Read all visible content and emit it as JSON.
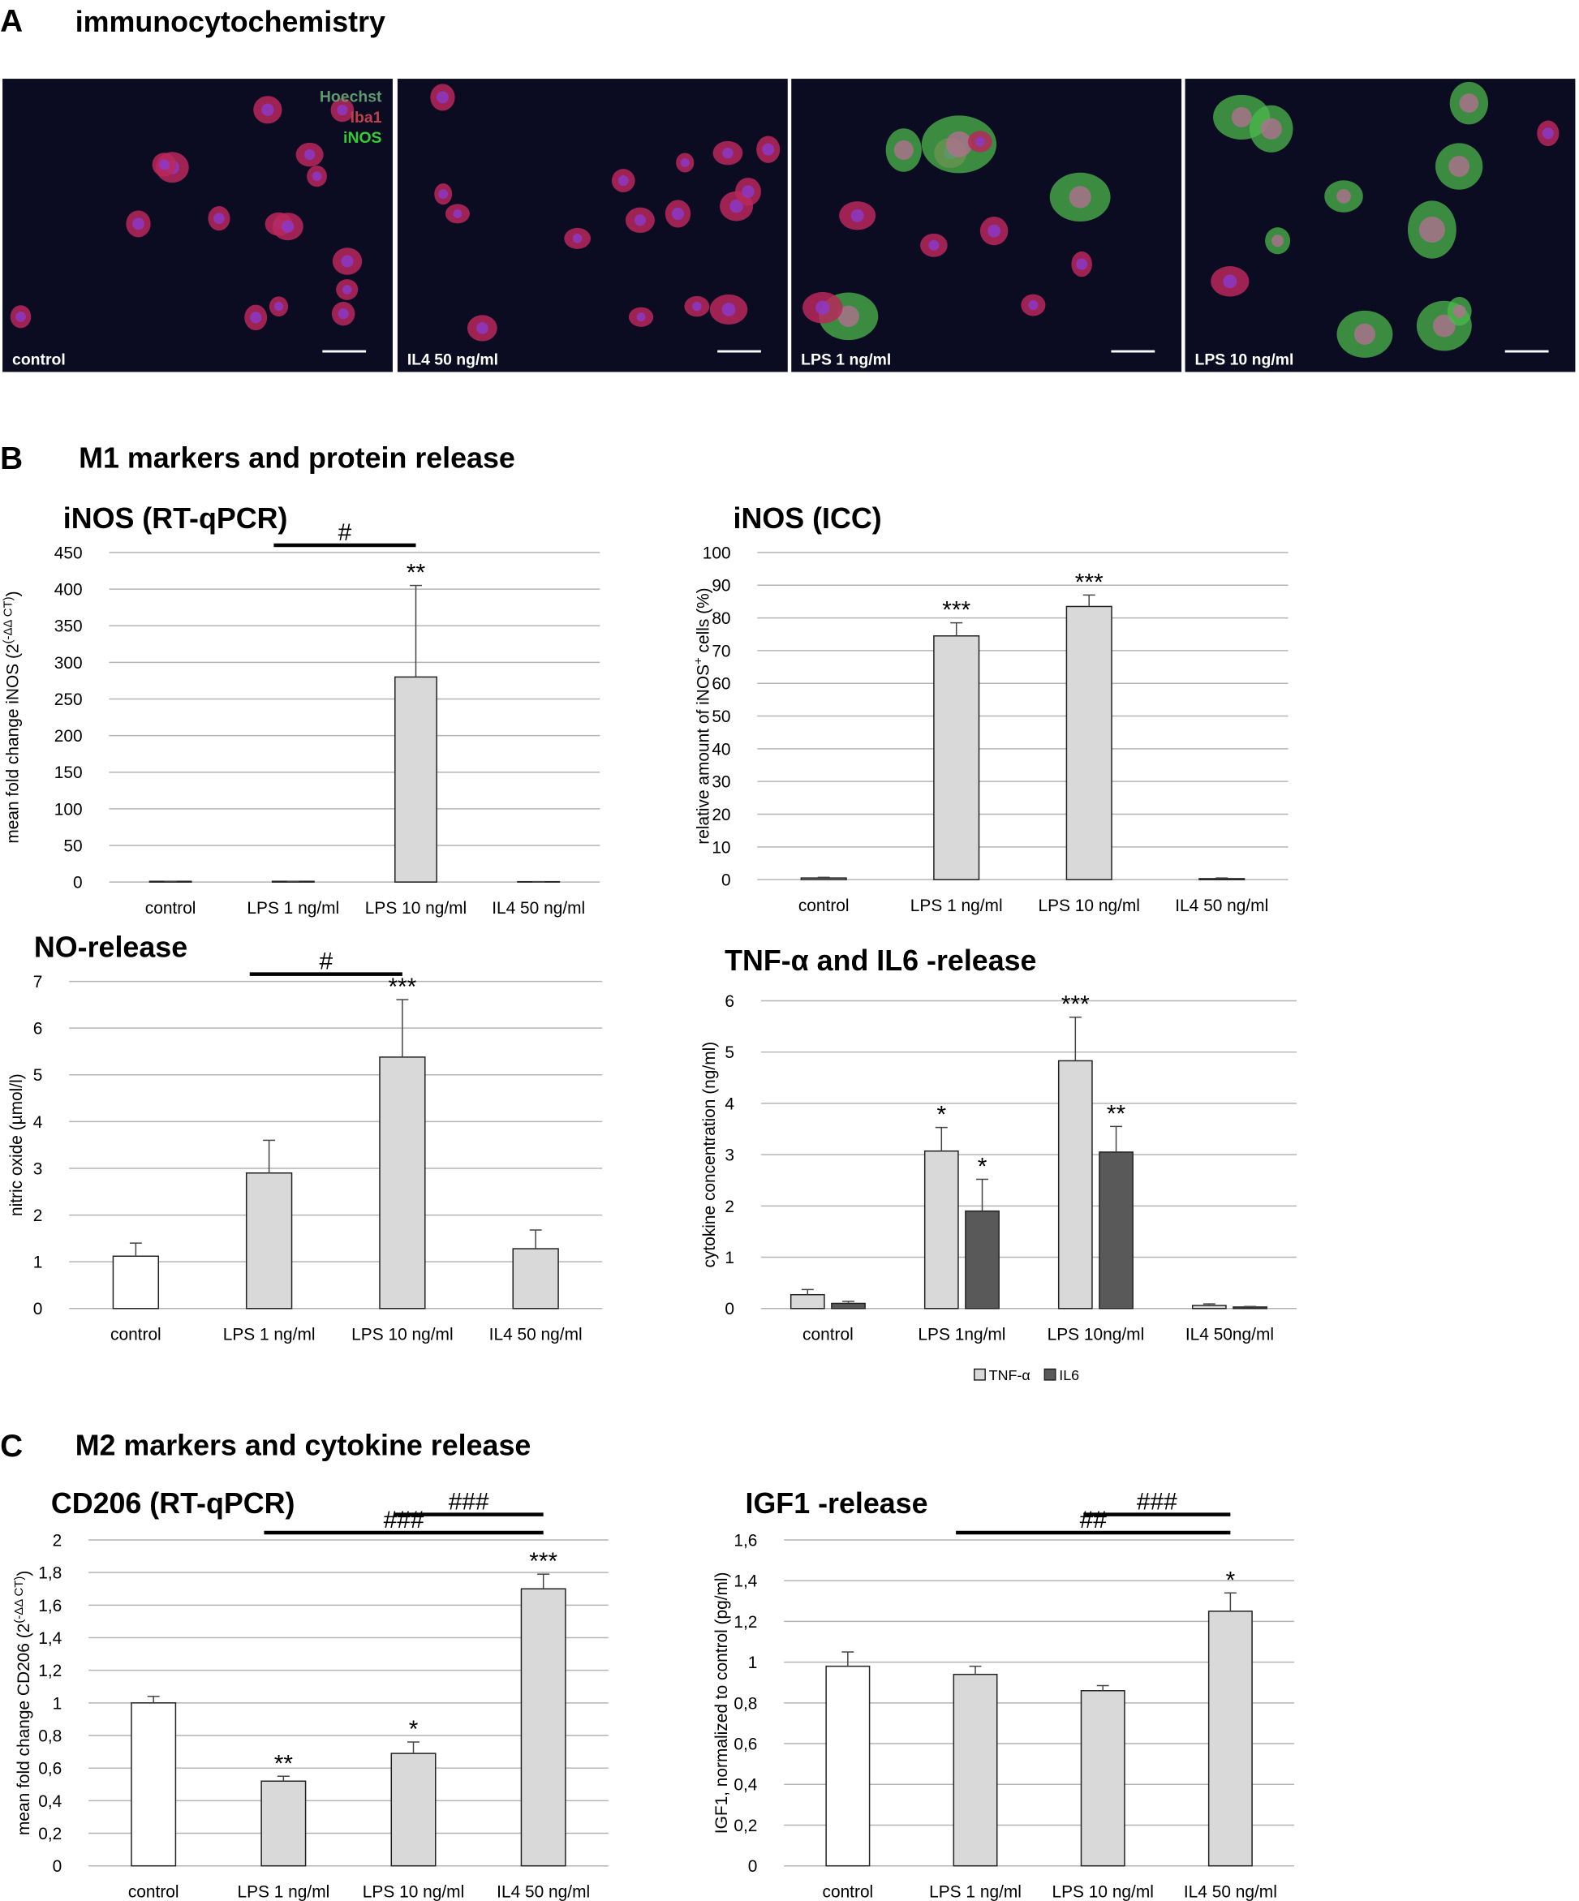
{
  "panel_labels": {
    "a": "A",
    "b": "B",
    "c": "C"
  },
  "section_titles": {
    "a": "immunocytochemistry",
    "b": "M1 markers and protein release",
    "c": "M2 markers and cytokine release"
  },
  "micrographs": {
    "captions": [
      "control",
      "IL4 50 ng/ml",
      "LPS 1 ng/ml",
      "LPS 10 ng/ml"
    ],
    "stain_legend": [
      "Hoechst",
      "Iba1",
      "iNOS"
    ]
  },
  "chart_data": [
    {
      "type": "bar",
      "title": "iNOS (RT-qPCR)",
      "ylabel": {
        "text": "mean fold change iNOS (2",
        "superscript": "(-ΔΔ CT)",
        "end": ")"
      },
      "categories": [
        "control",
        "LPS 1 ng/ml",
        "LPS 10 ng/ml",
        "IL4 50 ng/ml"
      ],
      "values": [
        1,
        1,
        280,
        0.5
      ],
      "errors": [
        0,
        0,
        125,
        0
      ],
      "colors": [
        "#d9d9d9",
        "#d9d9d9",
        "#d9d9d9",
        "#d9d9d9"
      ],
      "ylim": [
        0,
        450
      ],
      "yticks": [
        0,
        50,
        100,
        150,
        200,
        250,
        300,
        350,
        400,
        450
      ],
      "grid": true,
      "significance": [
        {
          "label": "**",
          "category": "LPS 10 ng/ml"
        }
      ],
      "brackets": [
        {
          "label": "#",
          "from": "LPS 1 ng/ml",
          "to": "LPS 10 ng/ml"
        }
      ]
    },
    {
      "type": "bar",
      "title": "iNOS (ICC)",
      "ylabel": {
        "text": "relative amount of iNOS",
        "superscript": "+",
        "end": " cells (%)"
      },
      "categories": [
        "control",
        "LPS 1 ng/ml",
        "LPS 10 ng/ml",
        "IL4 50 ng/ml"
      ],
      "values": [
        0.5,
        74.5,
        83.5,
        0.3
      ],
      "errors": [
        0.2,
        4,
        3.5,
        0.2
      ],
      "colors": [
        "#d9d9d9",
        "#d9d9d9",
        "#d9d9d9",
        "#d9d9d9"
      ],
      "ylim": [
        0,
        100
      ],
      "yticks": [
        0,
        10,
        20,
        30,
        40,
        50,
        60,
        70,
        80,
        90,
        100
      ],
      "grid": true,
      "significance": [
        {
          "label": "***",
          "category": "LPS 1 ng/ml"
        },
        {
          "label": "***",
          "category": "LPS 10 ng/ml"
        }
      ],
      "brackets": []
    },
    {
      "type": "bar",
      "title": "NO-release",
      "ylabel": "nitric oxide (µmol/l)",
      "categories": [
        "control",
        "LPS 1 ng/ml",
        "LPS 10 ng/ml",
        "IL4 50 ng/ml"
      ],
      "values": [
        1.12,
        2.9,
        5.38,
        1.28
      ],
      "errors": [
        0.28,
        0.7,
        1.23,
        0.4
      ],
      "colors": [
        "#ffffff",
        "#d9d9d9",
        "#d9d9d9",
        "#d9d9d9"
      ],
      "ylim": [
        0,
        7
      ],
      "yticks": [
        0,
        1,
        2,
        3,
        4,
        5,
        6,
        7
      ],
      "grid": true,
      "significance": [
        {
          "label": "***",
          "category": "LPS 10 ng/ml"
        }
      ],
      "brackets": [
        {
          "label": "#",
          "from": "LPS 1 ng/ml",
          "to": "LPS 10 ng/ml"
        }
      ]
    },
    {
      "type": "grouped_bar",
      "title": "TNF-α and IL6 -release",
      "ylabel": "cytokine concentration (ng/ml)",
      "categories": [
        "control",
        "LPS 1ng/ml",
        "LPS 10ng/ml",
        "IL4 50ng/ml"
      ],
      "series": [
        {
          "name": "TNF-α",
          "color": "#d9d9d9",
          "values": [
            0.27,
            3.07,
            4.83,
            0.06
          ],
          "errors": [
            0.1,
            0.46,
            0.85,
            0.03
          ]
        },
        {
          "name": "IL6",
          "color": "#595959",
          "values": [
            0.1,
            1.9,
            3.05,
            0.03
          ],
          "errors": [
            0.04,
            0.62,
            0.5,
            0.01
          ]
        }
      ],
      "ylim": [
        0,
        6
      ],
      "yticks": [
        0,
        1,
        2,
        3,
        4,
        5,
        6
      ],
      "grid": true,
      "legend": "bottom",
      "significance": [
        {
          "label": "*",
          "category": "LPS 1ng/ml",
          "series": "TNF-α"
        },
        {
          "label": "*",
          "category": "LPS 1ng/ml",
          "series": "IL6"
        },
        {
          "label": "***",
          "category": "LPS 10ng/ml",
          "series": "TNF-α"
        },
        {
          "label": "**",
          "category": "LPS 10ng/ml",
          "series": "IL6"
        }
      ],
      "brackets": []
    },
    {
      "type": "bar",
      "title": "CD206 (RT-qPCR)",
      "ylabel": {
        "text": "mean fold change CD206 (2",
        "superscript": "(-ΔΔ CT)",
        "end": ")"
      },
      "categories": [
        "control",
        "LPS 1 ng/ml",
        "LPS 10 ng/ml",
        "IL4 50 ng/ml"
      ],
      "values": [
        1,
        0.52,
        0.69,
        1.7
      ],
      "errors": [
        0.04,
        0.03,
        0.07,
        0.09
      ],
      "colors": [
        "#ffffff",
        "#d9d9d9",
        "#d9d9d9",
        "#d9d9d9"
      ],
      "ylim": [
        0,
        2
      ],
      "yticks": [
        0,
        {
          "value": 0.2,
          "label": "0,2"
        },
        {
          "value": 0.4,
          "label": "0,4"
        },
        {
          "value": 0.6,
          "label": "0,6"
        },
        {
          "value": 0.8,
          "label": "0,8"
        },
        1,
        {
          "value": 1.2,
          "label": "1,2"
        },
        {
          "value": 1.4,
          "label": "1,4"
        },
        {
          "value": 1.6,
          "label": "1,6"
        },
        {
          "value": 1.8,
          "label": "1,8"
        },
        2
      ],
      "grid": true,
      "significance": [
        {
          "label": "**",
          "category": "LPS 1 ng/ml"
        },
        {
          "label": "*",
          "category": "LPS 10 ng/ml"
        },
        {
          "label": "***",
          "category": "IL4 50 ng/ml"
        }
      ],
      "brackets": [
        {
          "label": "###",
          "from": "LPS 1 ng/ml",
          "to": "IL4 50 ng/ml"
        },
        {
          "label": "###",
          "from": "LPS 10 ng/ml",
          "to": "IL4 50 ng/ml"
        }
      ]
    },
    {
      "type": "bar",
      "title": "IGF1 -release",
      "ylabel": "IGF1, normalized to control (pg/ml)",
      "categories": [
        "control",
        "LPS 1 ng/ml",
        "LPS 10 ng/ml",
        "IL4 50 ng/ml"
      ],
      "values": [
        0.98,
        0.94,
        0.86,
        1.25
      ],
      "errors": [
        0.07,
        0.04,
        0.025,
        0.09
      ],
      "colors": [
        "#ffffff",
        "#d9d9d9",
        "#d9d9d9",
        "#d9d9d9"
      ],
      "ylim": [
        0,
        1.6
      ],
      "yticks": [
        0,
        {
          "value": 0.2,
          "label": "0,2"
        },
        {
          "value": 0.4,
          "label": "0,4"
        },
        {
          "value": 0.6,
          "label": "0,6"
        },
        {
          "value": 0.8,
          "label": "0,8"
        },
        1,
        {
          "value": 1.2,
          "label": "1,2"
        },
        {
          "value": 1.4,
          "label": "1,4"
        },
        {
          "value": 1.6,
          "label": "1,6"
        }
      ],
      "grid": true,
      "significance": [
        {
          "label": "*",
          "category": "IL4 50 ng/ml"
        }
      ],
      "brackets": [
        {
          "label": "##",
          "from": "LPS 1 ng/ml",
          "to": "IL4 50 ng/ml"
        },
        {
          "label": "###",
          "from": "LPS 10 ng/ml",
          "to": "IL4 50 ng/ml"
        }
      ]
    }
  ]
}
